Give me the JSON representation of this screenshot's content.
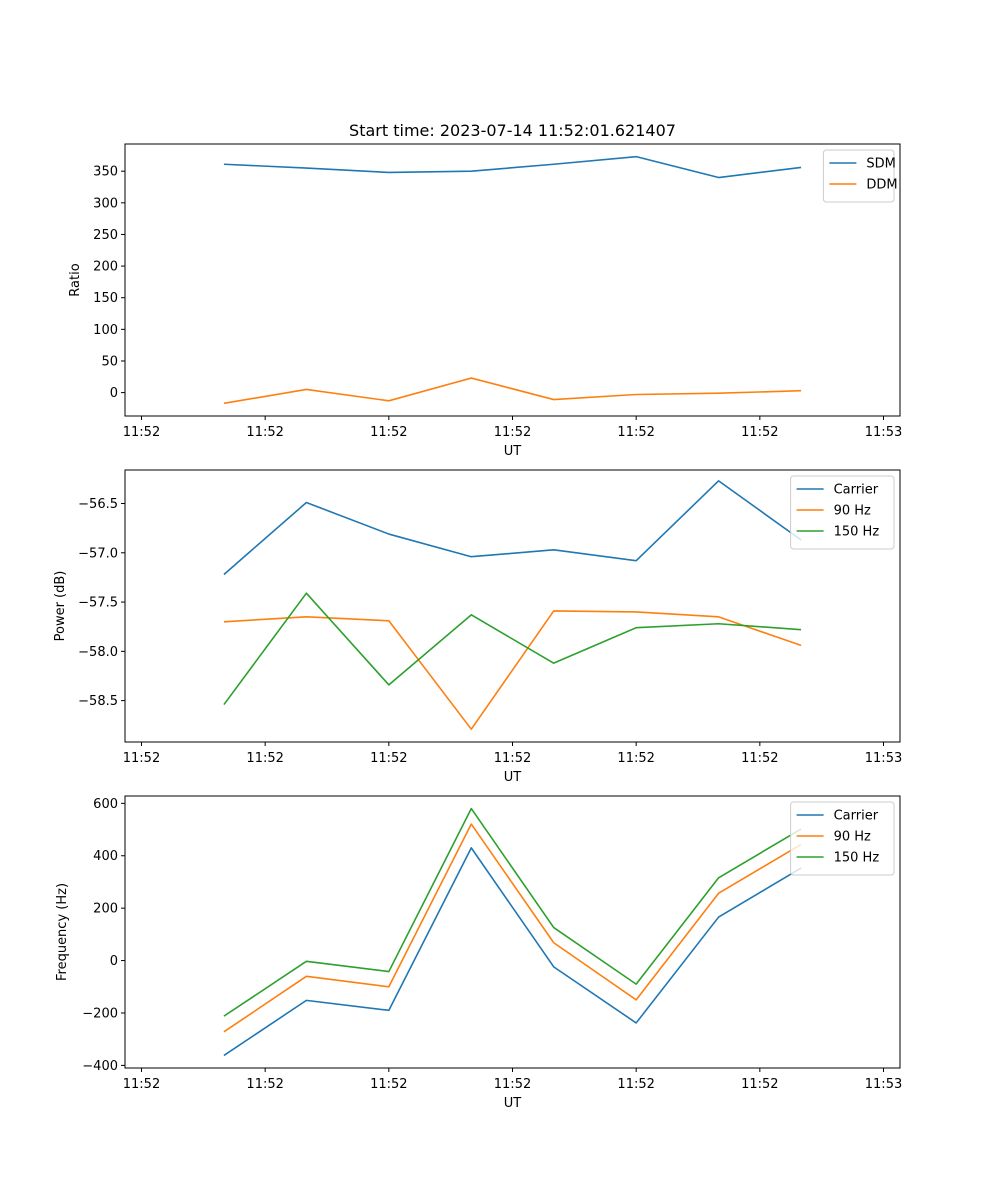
{
  "chart_data": [
    {
      "type": "line",
      "title": "Start time: 2023-07-14 11:52:01.621407",
      "xlabel": "UT",
      "ylabel": "Ratio",
      "x": [
        1,
        2,
        3,
        4,
        5,
        6,
        7,
        8
      ],
      "xlim": [
        -0.2,
        9.2
      ],
      "x_ticks": [
        0,
        1.5,
        3,
        4.5,
        6,
        7.5,
        9
      ],
      "x_tick_labels": [
        "11:52",
        "11:52",
        "11:52",
        "11:52",
        "11:52",
        "11:52",
        "11:53"
      ],
      "ylim": [
        -37,
        393
      ],
      "y_ticks": [
        0,
        50,
        100,
        150,
        200,
        250,
        300,
        350
      ],
      "y_tick_labels": [
        "0",
        "50",
        "100",
        "150",
        "200",
        "250",
        "300",
        "350"
      ],
      "legend_position": "top-right",
      "series": [
        {
          "name": "SDM",
          "color": "#1f77b4",
          "values": [
            361,
            355,
            348,
            350,
            361,
            373,
            340,
            356
          ]
        },
        {
          "name": "DDM",
          "color": "#ff7f0e",
          "values": [
            -17,
            5,
            -13,
            23,
            -11,
            -3,
            -1,
            3
          ]
        }
      ]
    },
    {
      "type": "line",
      "title": "",
      "xlabel": "UT",
      "ylabel": "Power (dB)",
      "x": [
        1,
        2,
        3,
        4,
        5,
        6,
        7,
        8
      ],
      "xlim": [
        -0.2,
        9.2
      ],
      "x_ticks": [
        0,
        1.5,
        3,
        4.5,
        6,
        7.5,
        9
      ],
      "x_tick_labels": [
        "11:52",
        "11:52",
        "11:52",
        "11:52",
        "11:52",
        "11:52",
        "11:53"
      ],
      "ylim": [
        -58.92,
        -56.16
      ],
      "y_ticks": [
        -58.5,
        -58.0,
        -57.5,
        -57.0,
        -56.5
      ],
      "y_tick_labels": [
        "−58.5",
        "−58.0",
        "−57.5",
        "−57.0",
        "−56.5"
      ],
      "legend_position": "top-right",
      "series": [
        {
          "name": "Carrier",
          "color": "#1f77b4",
          "values": [
            -57.22,
            -56.49,
            -56.81,
            -57.04,
            -56.97,
            -57.08,
            -56.27,
            -56.87
          ]
        },
        {
          "name": "90 Hz",
          "color": "#ff7f0e",
          "values": [
            -57.7,
            -57.65,
            -57.69,
            -58.79,
            -57.59,
            -57.6,
            -57.65,
            -57.94
          ]
        },
        {
          "name": "150 Hz",
          "color": "#2ca02c",
          "values": [
            -58.54,
            -57.41,
            -58.34,
            -57.63,
            -58.12,
            -57.76,
            -57.72,
            -57.78
          ]
        }
      ]
    },
    {
      "type": "line",
      "title": "",
      "xlabel": "UT",
      "ylabel": "Frequency (Hz)",
      "x": [
        1,
        2,
        3,
        4,
        5,
        6,
        7,
        8
      ],
      "xlim": [
        -0.2,
        9.2
      ],
      "x_ticks": [
        0,
        1.5,
        3,
        4.5,
        6,
        7.5,
        9
      ],
      "x_tick_labels": [
        "11:52",
        "11:52",
        "11:52",
        "11:52",
        "11:52",
        "11:52",
        "11:53"
      ],
      "ylim": [
        -410,
        628
      ],
      "y_ticks": [
        -400,
        -200,
        0,
        200,
        400,
        600
      ],
      "y_tick_labels": [
        "−400",
        "−200",
        "0",
        "200",
        "400",
        "600"
      ],
      "legend_position": "top-right",
      "series": [
        {
          "name": "Carrier",
          "color": "#1f77b4",
          "values": [
            -362,
            -152,
            -190,
            430,
            -24,
            -238,
            166,
            353
          ]
        },
        {
          "name": "90 Hz",
          "color": "#ff7f0e",
          "values": [
            -272,
            -60,
            -100,
            521,
            68,
            -150,
            257,
            443
          ]
        },
        {
          "name": "150 Hz",
          "color": "#2ca02c",
          "values": [
            -212,
            -3,
            -42,
            580,
            126,
            -90,
            316,
            502
          ]
        }
      ]
    }
  ]
}
